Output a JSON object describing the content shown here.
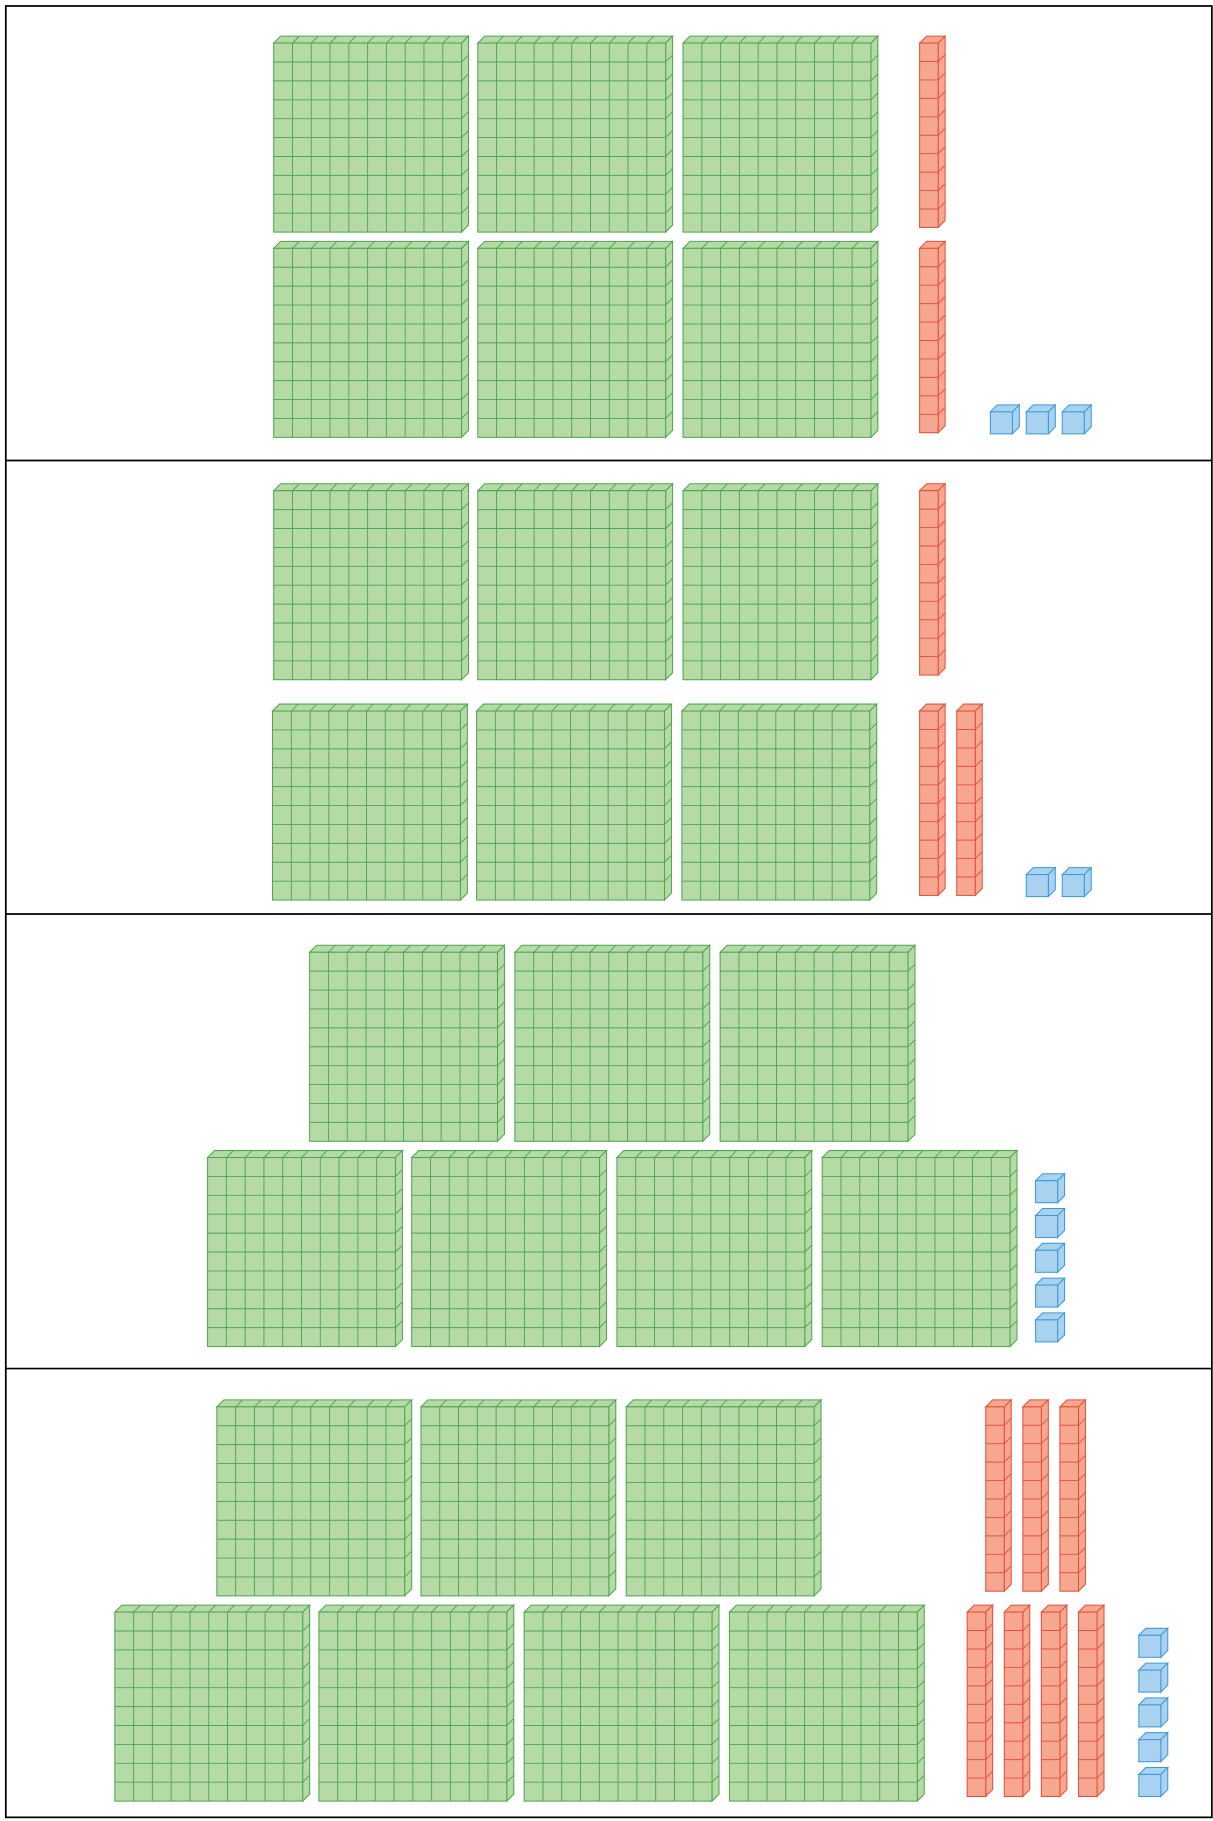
{
  "panels": [
    {
      "hundreds": 6,
      "tens": 2,
      "ones": 3
    },
    {
      "hundreds": 6,
      "tens": 3,
      "ones": 2
    },
    {
      "hundreds": 7,
      "tens": 0,
      "ones": 5
    },
    {
      "hundreds": 7,
      "tens": 7,
      "ones": 5
    }
  ]
}
